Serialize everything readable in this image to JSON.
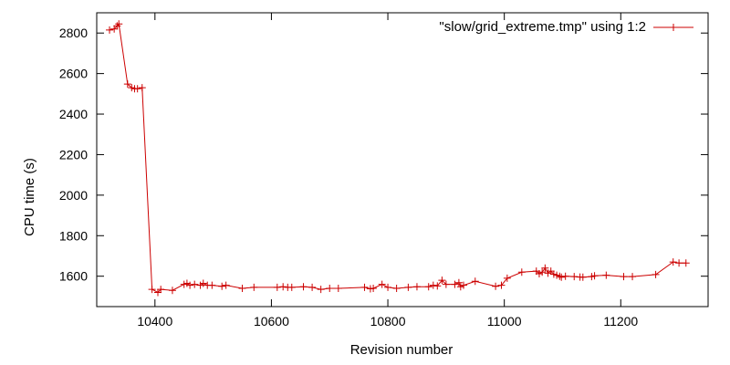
{
  "chart_data": {
    "type": "line",
    "xlabel": "Revision number",
    "ylabel": "CPU time (s)",
    "xlim": [
      10300,
      11350
    ],
    "ylim": [
      1450,
      2900
    ],
    "x_ticks": [
      10400,
      10600,
      10800,
      11000,
      11200
    ],
    "y_ticks": [
      1600,
      1800,
      2000,
      2200,
      2400,
      2600,
      2800
    ],
    "grid": false,
    "legend_position": "top-right",
    "colors": {
      "series": "#cc0000",
      "axes": "#000000"
    },
    "series": [
      {
        "name": "\"slow/grid_extreme.tmp\" using 1:2",
        "marker": "plus",
        "x": [
          10322,
          10330,
          10335,
          10338,
          10353,
          10360,
          10365,
          10370,
          10378,
          10395,
          10405,
          10410,
          10430,
          10450,
          10455,
          10460,
          10468,
          10478,
          10483,
          10490,
          10498,
          10515,
          10522,
          10550,
          10570,
          10610,
          10620,
          10628,
          10635,
          10655,
          10670,
          10685,
          10700,
          10715,
          10760,
          10770,
          10775,
          10790,
          10800,
          10815,
          10835,
          10850,
          10870,
          10878,
          10885,
          10893,
          10900,
          10915,
          10922,
          10925,
          10930,
          10950,
          10985,
          10995,
          11005,
          11030,
          11055,
          11060,
          11065,
          11070,
          11075,
          11080,
          11085,
          11090,
          11095,
          11098,
          11105,
          11120,
          11130,
          11135,
          11150,
          11155,
          11175,
          11205,
          11220,
          11260,
          11290,
          11300,
          11312
        ],
        "y": [
          2815,
          2820,
          2835,
          2845,
          2548,
          2530,
          2525,
          2525,
          2530,
          1535,
          1520,
          1535,
          1530,
          1560,
          1565,
          1555,
          1560,
          1555,
          1565,
          1555,
          1555,
          1550,
          1555,
          1540,
          1545,
          1545,
          1548,
          1545,
          1545,
          1548,
          1545,
          1535,
          1540,
          1540,
          1545,
          1538,
          1540,
          1560,
          1545,
          1540,
          1545,
          1548,
          1548,
          1555,
          1552,
          1580,
          1560,
          1560,
          1568,
          1548,
          1555,
          1575,
          1550,
          1555,
          1590,
          1620,
          1625,
          1612,
          1620,
          1640,
          1615,
          1625,
          1610,
          1605,
          1600,
          1595,
          1600,
          1598,
          1596,
          1595,
          1598,
          1602,
          1605,
          1598,
          1598,
          1608,
          1670,
          1665,
          1665
        ]
      }
    ]
  }
}
